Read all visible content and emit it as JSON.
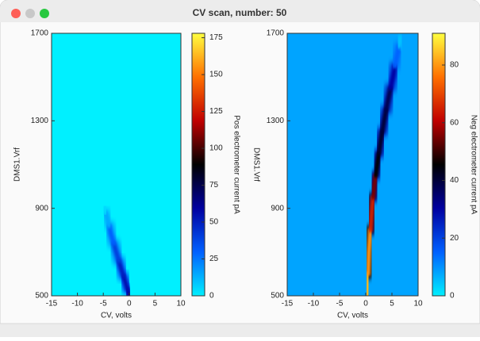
{
  "window": {
    "title": "CV scan, number: 50"
  },
  "chart_data": [
    {
      "type": "heatmap",
      "xlabel": "CV, volts",
      "ylabel": "DMS1.Vrf",
      "xlim": [
        -15,
        10
      ],
      "xticks": [
        -15,
        -10,
        -5,
        0,
        5,
        10
      ],
      "ylim": [
        500,
        1700
      ],
      "yticks": [
        500,
        900,
        1300,
        1700
      ],
      "colorbar_label": "Pos electrometer current pA",
      "clim": [
        0,
        178
      ],
      "cticks": [
        0,
        25,
        50,
        75,
        100,
        125,
        150,
        175
      ],
      "colormap": [
        "#00f0ff",
        "#0060ff",
        "#0000a0",
        "#000000",
        "#c00000",
        "#ff7000",
        "#ffff40"
      ],
      "background": 0,
      "ridge": {
        "x": [
          0,
          -0.7,
          -1.5,
          -2.5,
          -3.5,
          -4.3,
          -4.8
        ],
        "y": [
          500,
          560,
          620,
          700,
          780,
          860,
          900
        ],
        "values": [
          60,
          55,
          50,
          40,
          30,
          15,
          5
        ]
      }
    },
    {
      "type": "heatmap",
      "xlabel": "CV, volts",
      "ylabel": "DMS1.Vrf",
      "xlim": [
        -15,
        10
      ],
      "xticks": [
        -15,
        -10,
        -5,
        0,
        5,
        10
      ],
      "ylim": [
        500,
        1700
      ],
      "yticks": [
        500,
        900,
        1300,
        1700
      ],
      "colorbar_label": "Neg electrometer current pA",
      "clim": [
        0,
        91
      ],
      "cticks": [
        0,
        20,
        40,
        60,
        80
      ],
      "colormap": [
        "#00f0ff",
        "#0060ff",
        "#0000a0",
        "#000000",
        "#c00000",
        "#ff7000",
        "#ffff40"
      ],
      "background": 8,
      "ridge": {
        "x": [
          0.3,
          0.6,
          1.2,
          1.6,
          2.2,
          2.8,
          3.5,
          4.3,
          5.2,
          6,
          6.7
        ],
        "y": [
          500,
          700,
          900,
          1000,
          1100,
          1200,
          1300,
          1400,
          1500,
          1600,
          1680
        ],
        "values": [
          85,
          80,
          65,
          55,
          45,
          42,
          40,
          38,
          30,
          15,
          5
        ]
      }
    }
  ]
}
